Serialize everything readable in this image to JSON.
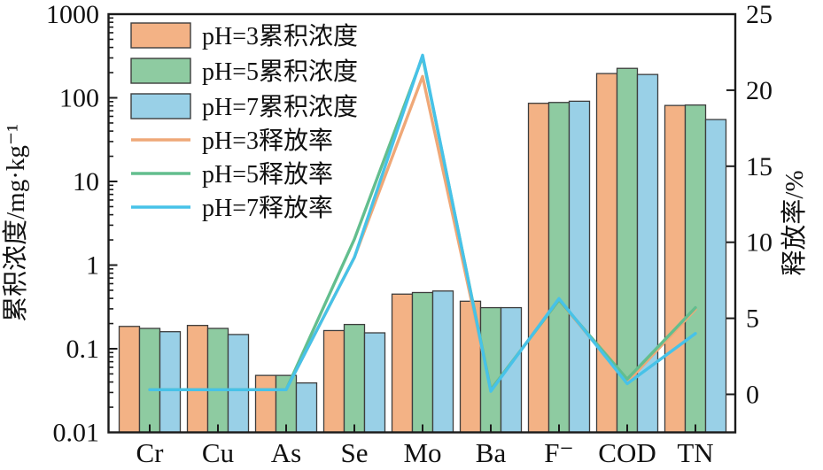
{
  "chart_data": {
    "type": "bar+line",
    "title": "",
    "categories": [
      "Cr",
      "Cu",
      "As",
      "Se",
      "Mo",
      "Ba",
      "F⁻",
      "COD",
      "TN"
    ],
    "left_axis": {
      "label": "累积浓度/mg·kg⁻¹",
      "scale": "log",
      "ticks": [
        0.01,
        0.1,
        1,
        10,
        100,
        1000
      ],
      "tick_labels": [
        "0.01",
        "0.1",
        "1",
        "10",
        "100",
        "1000"
      ],
      "range": [
        0.01,
        1000
      ]
    },
    "right_axis": {
      "label": "释放率/%",
      "scale": "linear",
      "ticks": [
        0,
        5,
        10,
        15,
        20,
        25
      ],
      "tick_labels": [
        "0",
        "5",
        "10",
        "15",
        "20",
        "25"
      ],
      "range_at_plot_edges": [
        -2.5,
        25.4
      ]
    },
    "bar_series": [
      {
        "name": "pH=3累积浓度",
        "color": "#F3B285",
        "values": [
          0.185,
          0.19,
          0.048,
          0.165,
          0.45,
          0.37,
          86,
          195,
          81
        ]
      },
      {
        "name": "pH=5累积浓度",
        "color": "#8ECBA1",
        "values": [
          0.175,
          0.175,
          0.048,
          0.195,
          0.47,
          0.31,
          88,
          225,
          82
        ]
      },
      {
        "name": "pH=7累积浓度",
        "color": "#99D0E7",
        "values": [
          0.16,
          0.148,
          0.039,
          0.155,
          0.49,
          0.31,
          91,
          190,
          55
        ]
      }
    ],
    "line_series": [
      {
        "name": "pH=3释放率",
        "color": "#EFA878",
        "values": [
          0.3,
          0.3,
          0.3,
          9.0,
          20.9,
          0.3,
          6.2,
          0.8,
          5.6
        ]
      },
      {
        "name": "pH=5释放率",
        "color": "#63BE8E",
        "values": [
          0.3,
          0.3,
          0.3,
          10.2,
          22.2,
          0.3,
          6.2,
          1.0,
          5.7
        ]
      },
      {
        "name": "pH=7释放率",
        "color": "#47C2E8",
        "values": [
          0.3,
          0.3,
          0.3,
          9.0,
          22.3,
          0.2,
          6.3,
          0.7,
          4.0
        ]
      }
    ],
    "legend_position": "top-left-inside",
    "grid": false,
    "colors": {
      "bar_outline": "#3d3d3d",
      "axis": "#1a1a1a",
      "background": "#ffffff"
    }
  }
}
